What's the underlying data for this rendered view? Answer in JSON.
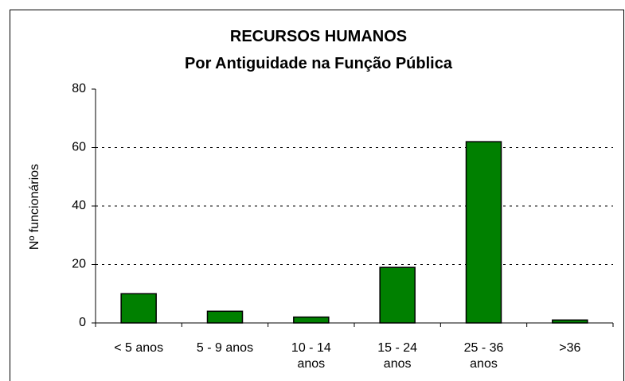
{
  "chart_data": {
    "type": "bar",
    "title": "RECURSOS HUMANOS",
    "subtitle": "Por Antiguidade na Função Pública",
    "y_label": "Nº funcionários",
    "categories": [
      "< 5 anos",
      "5 - 9 anos",
      "10 - 14 anos",
      "15 - 24 anos",
      "25 - 36 anos",
      ">36"
    ],
    "values": [
      10,
      4,
      2,
      19,
      62,
      1
    ],
    "color": "#008000",
    "ylim": [
      0,
      80
    ],
    "yticks": [
      0,
      20,
      40,
      60,
      80
    ],
    "grid": true
  }
}
